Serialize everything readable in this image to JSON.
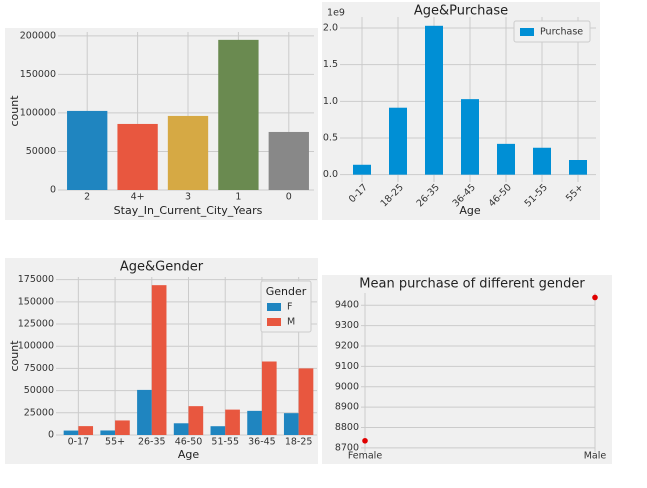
{
  "chart_data": [
    {
      "type": "bar",
      "xlabel": "Stay_In_Current_City_Years",
      "ylabel": "count",
      "categories": [
        "2",
        "4+",
        "3",
        "1",
        "0"
      ],
      "values": [
        102600,
        85700,
        96100,
        194800,
        75300
      ],
      "colors": [
        "#1f85c0",
        "#e8573f",
        "#d6a944",
        "#6a8a50",
        "#888888"
      ],
      "ylim": [
        0,
        205000
      ],
      "yticks": [
        0,
        50000,
        100000,
        150000,
        200000
      ],
      "grid": true
    },
    {
      "type": "bar",
      "title": "Age&Purchase",
      "xlabel": "Age",
      "y_offset_label": "1e9",
      "categories": [
        "0-17",
        "18-25",
        "26-35",
        "36-45",
        "46-50",
        "51-55",
        "55+"
      ],
      "series": [
        {
          "name": "Purchase",
          "color": "#008fd5",
          "values": [
            0.135,
            0.913,
            2.03,
            1.03,
            0.42,
            0.367,
            0.2
          ]
        }
      ],
      "ylim": [
        -0.1,
        2.15
      ],
      "yticks": [
        {
          "value": 0,
          "label": "0.0"
        },
        0.5,
        {
          "value": 1,
          "label": "1.0"
        },
        1.5,
        {
          "value": 2,
          "label": "2.0"
        }
      ],
      "legend": "upper right",
      "xtick_rotation": 45,
      "grid": true
    },
    {
      "type": "bar",
      "title": "Age&Gender",
      "xlabel": "Age",
      "ylabel": "count",
      "legend_title": "Gender",
      "categories": [
        "0-17",
        "55+",
        "26-35",
        "46-50",
        "51-55",
        "36-45",
        "18-25"
      ],
      "series": [
        {
          "name": "F",
          "color": "#1f85c0",
          "values": [
            5000,
            5100,
            50800,
            13200,
            9900,
            27200,
            24600
          ]
        },
        {
          "name": "M",
          "color": "#e8573f",
          "values": [
            10000,
            16400,
            168800,
            32500,
            28600,
            82800,
            75000
          ]
        }
      ],
      "ylim": [
        0,
        178000
      ],
      "yticks": [
        0,
        25000,
        50000,
        75000,
        100000,
        125000,
        150000,
        175000
      ],
      "legend": "upper right",
      "grid": true
    },
    {
      "type": "point",
      "title": "Mean purchase of different gender",
      "categories": [
        "Female",
        "Male"
      ],
      "values": [
        8735,
        9438
      ],
      "color": "#e00000",
      "ylim": [
        8680,
        9460
      ],
      "yticks": [
        8700,
        8800,
        8900,
        9000,
        9100,
        9200,
        9300,
        9400
      ],
      "grid": true
    }
  ]
}
